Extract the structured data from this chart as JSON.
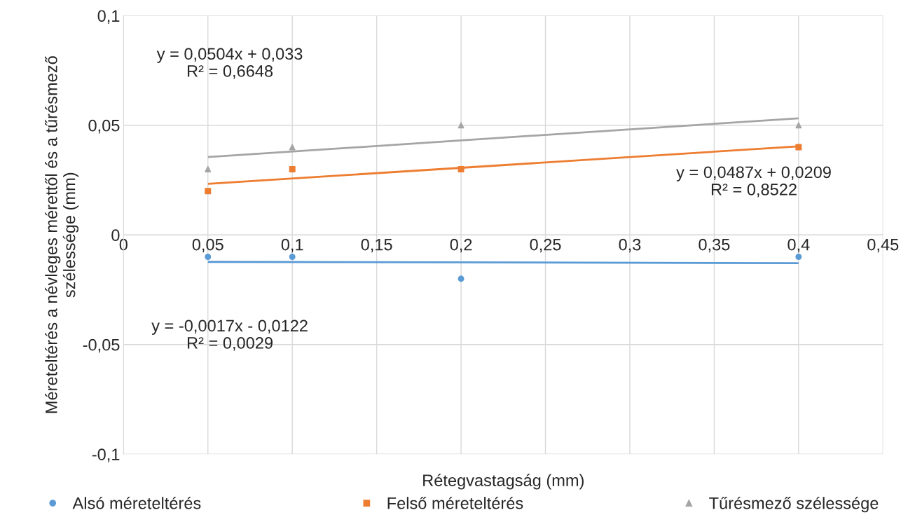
{
  "chart_data": {
    "type": "scatter",
    "xlabel": "Rétegvastagság (mm)",
    "ylabel": "Méreteltérés a névleges mérettől és a tűrésmező\nszélessége (mm)",
    "x": [
      0.05,
      0.1,
      0.2,
      0.4
    ],
    "series": [
      {
        "name": "Alsó méreteltérés",
        "color": "#5b9bd5",
        "marker": "circle",
        "values": [
          -0.01,
          -0.01,
          -0.02,
          -0.01
        ]
      },
      {
        "name": "Felső méreteltérés",
        "color": "#ed7d31",
        "marker": "square",
        "values": [
          0.02,
          0.03,
          0.03,
          0.04
        ]
      },
      {
        "name": "Tűrésmező szélessége",
        "color": "#a5a5a5",
        "marker": "triangle",
        "values": [
          0.03,
          0.04,
          0.05,
          0.05
        ]
      },
      {
        "type": "line",
        "color": "#5b9bd5",
        "x": [
          0.05,
          0.2,
          0.4
        ],
        "values": [
          -0.0123,
          -0.0125,
          -0.0129
        ]
      },
      {
        "type": "line",
        "color": "#ed7d31",
        "x": [
          0.05,
          0.2,
          0.4
        ],
        "values": [
          0.0233,
          0.0306,
          0.0404
        ]
      },
      {
        "type": "line",
        "color": "#a5a5a5",
        "x": [
          0.05,
          0.2,
          0.4
        ],
        "values": [
          0.0355,
          0.0431,
          0.0532
        ]
      }
    ],
    "annotations": [
      "y = 0,0504x + 0,033\nR² = 0,6648",
      "y = 0,0487x + 0,0209\nR² = 0,8522",
      "y = -0,0017x - 0,0122\nR² = 0,0029"
    ],
    "xlim": [
      0,
      0.45
    ],
    "xticks": [
      {
        "value": 0,
        "label": "0"
      },
      {
        "value": 0.05,
        "label": "0,05"
      },
      {
        "value": 0.1,
        "label": "0,1"
      },
      {
        "value": 0.15,
        "label": "0,15"
      },
      {
        "value": 0.2,
        "label": "0,2"
      },
      {
        "value": 0.25,
        "label": "0,25"
      },
      {
        "value": 0.3,
        "label": "0,3"
      },
      {
        "value": 0.35,
        "label": "0,35"
      },
      {
        "value": 0.4,
        "label": "0,4"
      },
      {
        "value": 0.45,
        "label": "0,45"
      }
    ],
    "ylim": [
      -0.1,
      0.1
    ],
    "yticks": [
      {
        "value": -0.1,
        "label": "-0,1"
      },
      {
        "value": -0.05,
        "label": "-0,05"
      },
      {
        "value": 0,
        "label": "0"
      },
      {
        "value": 0.05,
        "label": "0,05"
      },
      {
        "value": 0.1,
        "label": "0,1"
      }
    ],
    "grid": true,
    "legend": "bottom"
  }
}
